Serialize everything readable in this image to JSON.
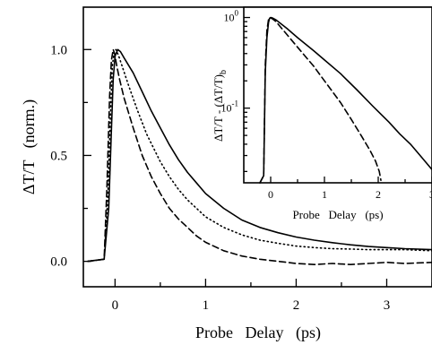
{
  "chart_data": [
    {
      "type": "line",
      "xlabel": "Probe   Delay   (ps)",
      "ylabel": "ΔT/T   (norm.)",
      "xlim": [
        -0.35,
        3.5
      ],
      "ylim": [
        -0.12,
        1.2
      ],
      "xticks": [
        0,
        1,
        2,
        3
      ],
      "xtick_labels": [
        "0",
        "1",
        "2",
        "3"
      ],
      "yticks": [
        0.0,
        0.5,
        1.0
      ],
      "ytick_labels": [
        "0.0",
        "0.5",
        "1.0"
      ],
      "grid": false,
      "series": [
        {
          "style": "solid",
          "x": [
            -0.3,
            -0.12,
            -0.07,
            -0.04,
            -0.02,
            0.0,
            0.03,
            0.06,
            0.1,
            0.2,
            0.3,
            0.4,
            0.5,
            0.6,
            0.7,
            0.8,
            0.9,
            1.0,
            1.2,
            1.4,
            1.6,
            1.8,
            2.0,
            2.2,
            2.4,
            2.6,
            2.8,
            3.0,
            3.2,
            3.5
          ],
          "y": [
            0.0,
            0.01,
            0.25,
            0.62,
            0.86,
            0.97,
            1.0,
            0.99,
            0.96,
            0.89,
            0.8,
            0.71,
            0.63,
            0.55,
            0.48,
            0.42,
            0.37,
            0.32,
            0.25,
            0.195,
            0.16,
            0.135,
            0.115,
            0.1,
            0.088,
            0.078,
            0.07,
            0.065,
            0.06,
            0.055
          ]
        },
        {
          "style": "dotted",
          "x": [
            -0.3,
            -0.12,
            -0.08,
            -0.05,
            -0.03,
            -0.01,
            0.01,
            0.04,
            0.08,
            0.15,
            0.25,
            0.35,
            0.5,
            0.6,
            0.7,
            0.8,
            0.9,
            1.0,
            1.2,
            1.4,
            1.6,
            1.8,
            2.0,
            2.2,
            2.4,
            2.6,
            2.8,
            3.0,
            3.2,
            3.5
          ],
          "y": [
            0.0,
            0.01,
            0.3,
            0.7,
            0.92,
            0.99,
            1.0,
            0.97,
            0.92,
            0.83,
            0.71,
            0.6,
            0.47,
            0.4,
            0.34,
            0.29,
            0.25,
            0.21,
            0.16,
            0.125,
            0.1,
            0.085,
            0.072,
            0.065,
            0.06,
            0.058,
            0.055,
            0.055,
            0.055,
            0.05
          ]
        },
        {
          "style": "dashed",
          "x": [
            -0.3,
            -0.12,
            -0.09,
            -0.06,
            -0.04,
            -0.02,
            -0.005,
            0.02,
            0.05,
            0.1,
            0.2,
            0.3,
            0.4,
            0.5,
            0.6,
            0.7,
            0.8,
            0.9,
            1.0,
            1.2,
            1.4,
            1.6,
            1.8,
            2.0,
            2.2,
            2.4,
            2.6,
            2.8,
            3.0,
            3.2,
            3.5
          ],
          "y": [
            0.0,
            0.01,
            0.35,
            0.78,
            0.95,
            1.0,
            0.98,
            0.92,
            0.86,
            0.77,
            0.63,
            0.5,
            0.4,
            0.32,
            0.25,
            0.2,
            0.16,
            0.12,
            0.09,
            0.05,
            0.025,
            0.01,
            0.0,
            -0.01,
            -0.015,
            -0.01,
            -0.015,
            -0.01,
            -0.005,
            -0.01,
            -0.005
          ]
        }
      ]
    },
    {
      "type": "line",
      "xlabel": "Probe   Delay   (ps)",
      "ylabel": "ΔT/T - (ΔT/T)",
      "ylabel_subscript": "b",
      "xlim": [
        -0.5,
        3.0
      ],
      "ylim": [
        0.015,
        1.3
      ],
      "log_y": true,
      "xticks": [
        0,
        1,
        2,
        3
      ],
      "xtick_labels": [
        "0",
        "1",
        "2",
        "3"
      ],
      "yticks": [
        0.1,
        1.0
      ],
      "ytick_labels": [
        {
          "base": "10",
          "exp": "-1"
        },
        {
          "base": "10",
          "exp": "0"
        }
      ],
      "series": [
        {
          "style": "solid",
          "x": [
            -0.2,
            -0.13,
            -0.1,
            -0.07,
            -0.04,
            -0.02,
            0.0,
            0.03,
            0.1,
            0.3,
            0.5,
            0.8,
            1.0,
            1.3,
            1.6,
            1.9,
            2.2,
            2.4,
            2.6,
            2.8,
            3.0
          ],
          "y": [
            0.015,
            0.018,
            0.25,
            0.6,
            0.88,
            0.98,
            1.0,
            0.99,
            0.94,
            0.76,
            0.6,
            0.43,
            0.34,
            0.24,
            0.16,
            0.105,
            0.07,
            0.052,
            0.04,
            0.029,
            0.021
          ]
        },
        {
          "style": "dashed",
          "x": [
            -0.2,
            -0.13,
            -0.1,
            -0.07,
            -0.04,
            -0.02,
            0.0,
            0.03,
            0.1,
            0.3,
            0.5,
            0.8,
            1.0,
            1.3,
            1.5,
            1.7,
            1.85,
            1.95,
            2.02,
            2.05
          ],
          "y": [
            0.015,
            0.018,
            0.3,
            0.72,
            0.95,
            1.0,
            0.99,
            0.97,
            0.9,
            0.65,
            0.47,
            0.29,
            0.2,
            0.115,
            0.075,
            0.048,
            0.034,
            0.026,
            0.02,
            0.016
          ]
        }
      ]
    }
  ]
}
